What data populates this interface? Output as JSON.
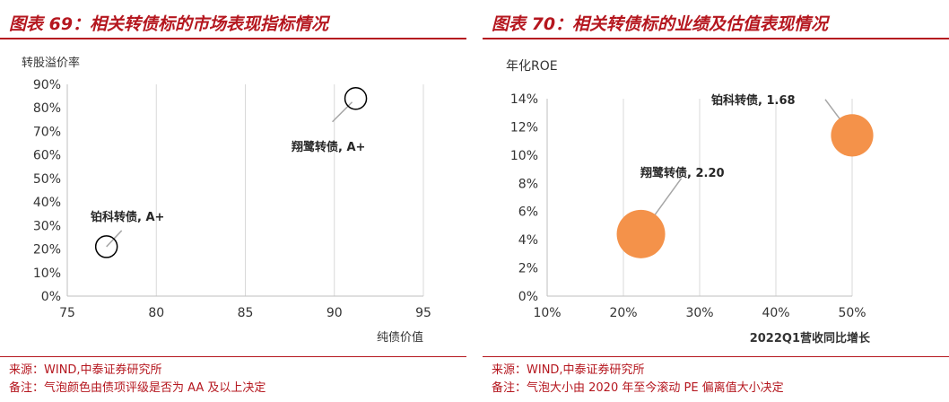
{
  "chart_data": [
    {
      "type": "scatter",
      "title": "图表 69：相关转债标的市场表现指标情况",
      "xlabel": "纯债价值",
      "ylabel": "转股溢价率",
      "xlim": [
        75,
        95
      ],
      "ylim": [
        0,
        90
      ],
      "x_ticks": [
        "75",
        "80",
        "85",
        "90",
        "95"
      ],
      "y_ticks": [
        "0%",
        "10%",
        "20%",
        "30%",
        "40%",
        "50%",
        "60%",
        "70%",
        "80%",
        "90%"
      ],
      "grid": "vertical",
      "points": [
        {
          "x": 77.2,
          "y": 21,
          "label": "铂科转债, A+"
        },
        {
          "x": 91.2,
          "y": 84,
          "label": "翔鹭转债, A+"
        }
      ],
      "source": "来源：WIND,中泰证券研究所",
      "note": "备注：气泡颜色由债项评级是否为 AA 及以上决定",
      "colors": {
        "marker_stroke": "#000000",
        "marker_fill": "#ffffff"
      }
    },
    {
      "type": "scatter",
      "title": "图表 70：相关转债标的业绩及估值表现情况",
      "xlabel": "2022Q1营收同比增长",
      "ylabel": "年化ROE",
      "xlim": [
        10,
        50
      ],
      "ylim": [
        0,
        14
      ],
      "x_ticks": [
        "10%",
        "20%",
        "30%",
        "40%",
        "50%"
      ],
      "y_ticks": [
        "0%",
        "2%",
        "4%",
        "6%",
        "8%",
        "10%",
        "12%",
        "14%"
      ],
      "grid": "vertical",
      "points": [
        {
          "x": 22.3,
          "y": 4.4,
          "size": 2.2,
          "label": "翔鹭转债, 2.20"
        },
        {
          "x": 50.0,
          "y": 11.4,
          "size": 1.68,
          "label": "铂科转债, 1.68"
        }
      ],
      "source": "来源：WIND,中泰证券研究所",
      "note": "备注：气泡大小由 2020 年至今滚动 PE 偏离值大小决定",
      "colors": {
        "bubble_fill": "#f4924a"
      }
    }
  ]
}
